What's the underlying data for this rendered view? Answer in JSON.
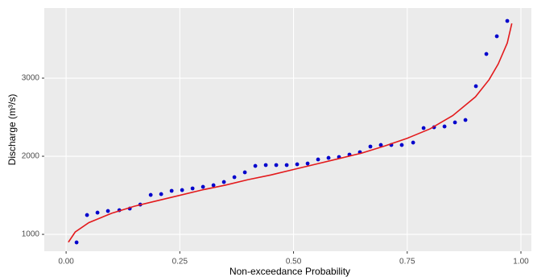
{
  "chart_data": {
    "type": "scatter",
    "x_label": "Non-exceedance Probability",
    "y_label": "Discharge (m³/s)",
    "xlim": [
      -0.048,
      1.023
    ],
    "ylim": [
      784,
      3897
    ],
    "xticks": [
      {
        "value": 0,
        "label": "0.00"
      },
      {
        "value": 0.25,
        "label": "0.25"
      },
      {
        "value": 0.5,
        "label": "0.50"
      },
      {
        "value": 0.75,
        "label": "0.75"
      },
      {
        "value": 1,
        "label": "1.00"
      }
    ],
    "yticks": [
      1000,
      2000,
      3000
    ],
    "grid": true,
    "series": [
      {
        "kind": "points",
        "color": "#0000cc",
        "x": [
          0.023,
          0.046,
          0.069,
          0.092,
          0.117,
          0.14,
          0.163,
          0.186,
          0.209,
          0.232,
          0.255,
          0.278,
          0.301,
          0.324,
          0.347,
          0.37,
          0.393,
          0.416,
          0.439,
          0.462,
          0.485,
          0.508,
          0.531,
          0.554,
          0.577,
          0.6,
          0.623,
          0.646,
          0.669,
          0.692,
          0.715,
          0.738,
          0.763,
          0.786,
          0.809,
          0.832,
          0.855,
          0.878,
          0.901,
          0.924,
          0.947,
          0.97
        ],
        "values": [
          897,
          1247,
          1278,
          1299,
          1309,
          1330,
          1381,
          1505,
          1515,
          1557,
          1567,
          1588,
          1608,
          1629,
          1670,
          1732,
          1794,
          1876,
          1887,
          1887,
          1887,
          1897,
          1907,
          1959,
          1979,
          1990,
          2021,
          2052,
          2124,
          2144,
          2144,
          2144,
          2175,
          2361,
          2371,
          2381,
          2433,
          2464,
          2897,
          3309,
          3536,
          3732
        ]
      },
      {
        "kind": "line",
        "color": "#e31a1c",
        "x": [
          0.005,
          0.02,
          0.05,
          0.1,
          0.15,
          0.2,
          0.25,
          0.3,
          0.35,
          0.4,
          0.45,
          0.5,
          0.55,
          0.6,
          0.65,
          0.7,
          0.75,
          0.8,
          0.85,
          0.9,
          0.93,
          0.95,
          0.97,
          0.98
        ],
        "values": [
          900,
          1030,
          1150,
          1270,
          1360,
          1430,
          1500,
          1570,
          1630,
          1700,
          1760,
          1830,
          1900,
          1970,
          2040,
          2130,
          2230,
          2350,
          2520,
          2760,
          2980,
          3180,
          3450,
          3700
        ]
      }
    ]
  }
}
